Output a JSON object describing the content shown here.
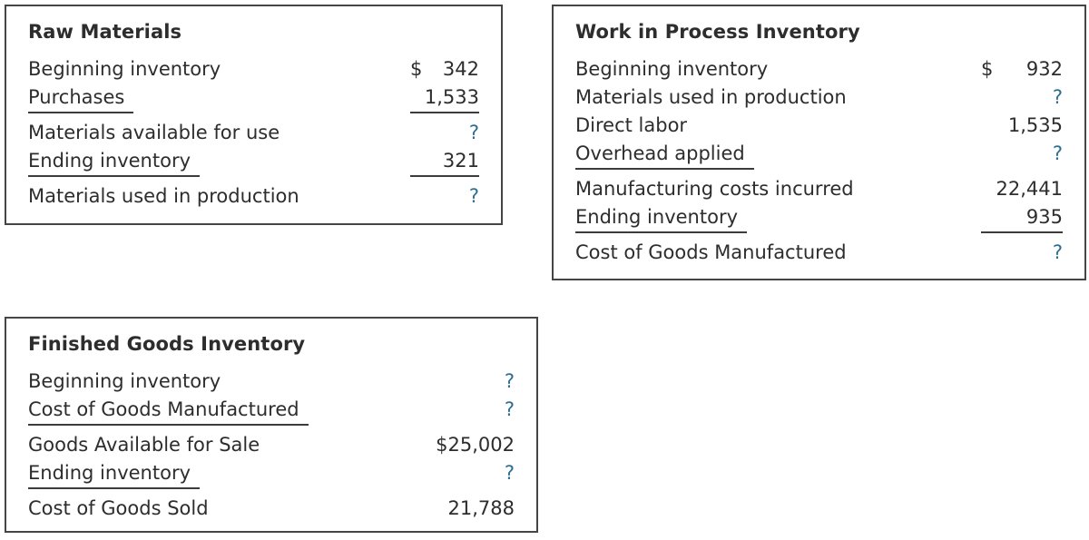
{
  "colors": {
    "text": "#2d2d2d",
    "unknown_value": "#2e6f91",
    "panel_border": "#454545",
    "rule_line": "#3b3b3b",
    "background": "#ffffff"
  },
  "panels": [
    {
      "title": "Raw Materials",
      "rows": [
        {
          "label": "Beginning inventory",
          "prefix": "$",
          "value": "342"
        },
        {
          "label": "Purchases",
          "value": "1,533"
        },
        {
          "label": "Materials available for use",
          "value": "?"
        },
        {
          "label": "Ending inventory",
          "value": "321"
        },
        {
          "label": "Materials used in production",
          "value": "?"
        }
      ]
    },
    {
      "title": "Work in Process Inventory",
      "rows": [
        {
          "label": "Beginning inventory",
          "prefix": "$",
          "value": "932"
        },
        {
          "label": "Materials used in production",
          "value": "?"
        },
        {
          "label": "Direct labor",
          "value": "1,535"
        },
        {
          "label": "Overhead applied",
          "value": "?"
        },
        {
          "label": "Manufacturing costs incurred",
          "value": "22,441"
        },
        {
          "label": "Ending inventory",
          "value": "935"
        },
        {
          "label": "Cost of Goods Manufactured",
          "value": "?"
        }
      ]
    },
    {
      "title": "Finished Goods Inventory",
      "rows": [
        {
          "label": "Beginning inventory",
          "value": "?"
        },
        {
          "label": "Cost of Goods Manufactured",
          "value": "?"
        },
        {
          "label": "Goods Available for Sale",
          "value": "$25,002"
        },
        {
          "label": "Ending inventory",
          "value": "?"
        },
        {
          "label": "Cost of Goods Sold",
          "value": "21,788"
        }
      ]
    }
  ]
}
